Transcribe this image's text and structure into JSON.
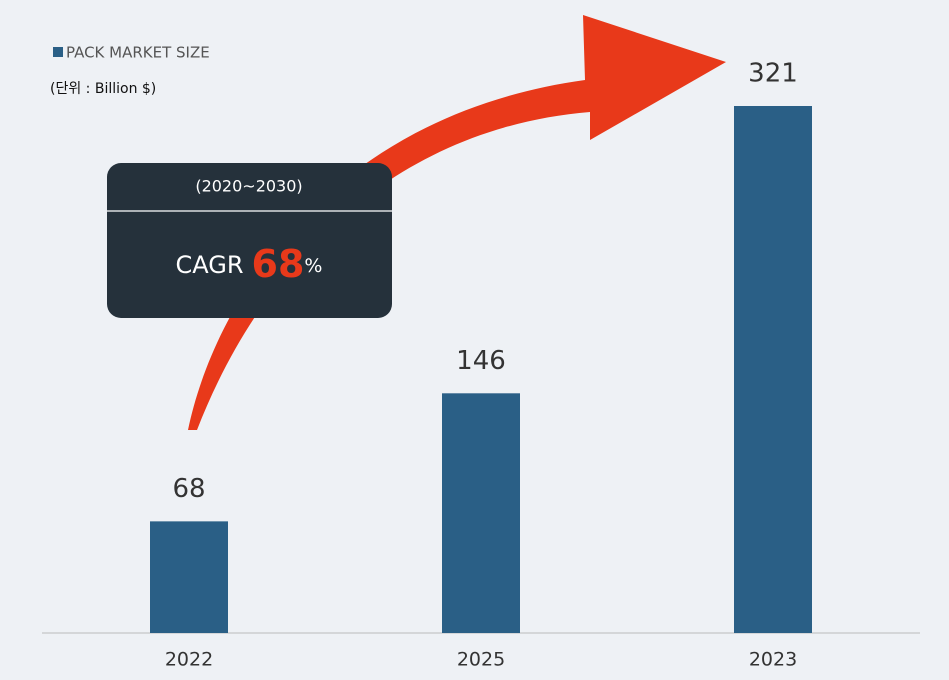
{
  "chart_data": {
    "type": "bar",
    "categories": [
      "2022",
      "2025",
      "2023"
    ],
    "series": [
      {
        "name": "PACK MARKET SIZE",
        "color": "#2a5f86",
        "values": [
          68,
          146,
          321
        ]
      }
    ],
    "unit_note": "(단위 : Billion $)",
    "annotation": {
      "period": "(2020~2030)",
      "label": "CAGR",
      "value": 68,
      "suffix": "%",
      "value_color": "#e8391a"
    }
  }
}
